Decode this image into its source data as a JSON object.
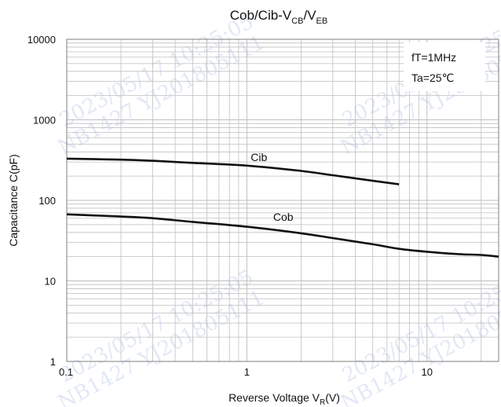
{
  "chart_data": {
    "type": "line",
    "title": {
      "main": "Cob/Cib-V",
      "sub1": "CB",
      "sep": "/V",
      "sub2": "EB"
    },
    "xlabel": {
      "main": "Reverse Voltage   V",
      "sub": "R",
      "tail": "(V)"
    },
    "ylabel": "Capacitance   C(pF)",
    "x_scale": "log",
    "y_scale": "log",
    "xlim": [
      0.1,
      25
    ],
    "ylim": [
      1,
      10000
    ],
    "x_ticks": [
      0.1,
      1,
      10
    ],
    "x_tick_labels": [
      "0.1",
      "1",
      "10"
    ],
    "y_ticks": [
      1,
      10,
      100,
      1000,
      10000
    ],
    "y_tick_labels": [
      "1",
      "10",
      "100",
      "1000",
      "10000"
    ],
    "grid": true,
    "annotations": [
      "fT=1MHz",
      "Ta=25℃"
    ],
    "series": [
      {
        "name": "Cib",
        "x": [
          0.1,
          0.2,
          0.3,
          0.5,
          1,
          2,
          3,
          5,
          7
        ],
        "y": [
          330,
          320,
          310,
          292,
          270,
          232,
          205,
          175,
          158
        ]
      },
      {
        "name": "Cob",
        "x": [
          0.1,
          0.2,
          0.3,
          0.5,
          1,
          2,
          3,
          5,
          7,
          10,
          15,
          20,
          25
        ],
        "y": [
          67,
          63,
          60,
          54,
          47,
          39,
          34,
          28.5,
          25,
          23,
          21.5,
          21,
          20
        ]
      }
    ],
    "colors": {
      "line": "#111111",
      "grid": "#bfbfbf",
      "axis": "#7f7f7f"
    }
  },
  "watermark": [
    "2023/05/17 10:25:05",
    "NB1427 YJ201805111"
  ]
}
